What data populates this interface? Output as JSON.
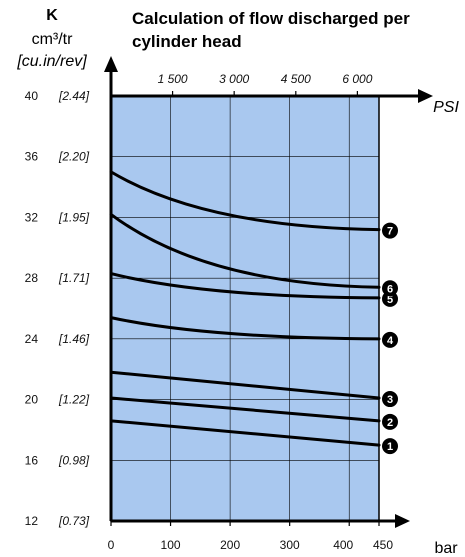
{
  "chart_data": {
    "type": "line",
    "title": "Calculation of flow discharged per cylinder head",
    "title_lines": [
      "Calculation of flow discharged per",
      "cylinder head"
    ],
    "ylabel": "K",
    "ylabel_unit": "cm³/tr",
    "ylabel_secondary_unit": "[cu.in/rev]",
    "xlabel": "bar",
    "xlabel_secondary": "PSI",
    "xlim": [
      0,
      450
    ],
    "ylim": [
      12,
      40
    ],
    "y_ticks": [
      40,
      36,
      32,
      28,
      24,
      20,
      16,
      12
    ],
    "y_ticks_secondary": [
      "[2.44]",
      "[2.20]",
      "[1.95]",
      "[1.71]",
      "[1.46]",
      "[1.22]",
      "[0.98]",
      "[0.73]"
    ],
    "x_ticks": [
      0,
      100,
      200,
      300,
      400,
      450
    ],
    "x_ticks_secondary": [
      {
        "label": "1 500",
        "bar": 103.4
      },
      {
        "label": "3 000",
        "bar": 206.8
      },
      {
        "label": "4 500",
        "bar": 310.3
      },
      {
        "label": "6 000",
        "bar": 413.7
      }
    ],
    "grid": true,
    "plot_background": "#a9c8ef",
    "line_color": "#000000",
    "series": [
      {
        "name": "1",
        "x": [
          0,
          450
        ],
        "y": [
          18.6,
          17.0
        ],
        "curve": "linear"
      },
      {
        "name": "2",
        "x": [
          0,
          450
        ],
        "y": [
          20.1,
          18.6
        ],
        "curve": "linear"
      },
      {
        "name": "3",
        "x": [
          0,
          450
        ],
        "y": [
          21.8,
          20.1
        ],
        "curve": "linear"
      },
      {
        "name": "4",
        "x": [
          0,
          450
        ],
        "y": [
          25.4,
          24.0
        ],
        "curve": "concave"
      },
      {
        "name": "5",
        "x": [
          0,
          450
        ],
        "y": [
          28.3,
          26.7
        ],
        "curve": "concave"
      },
      {
        "name": "6",
        "x": [
          0,
          450
        ],
        "y": [
          32.2,
          27.4
        ],
        "curve": "concave"
      },
      {
        "name": "7",
        "x": [
          0,
          450
        ],
        "y": [
          35.0,
          31.2
        ],
        "curve": "concave"
      }
    ]
  }
}
